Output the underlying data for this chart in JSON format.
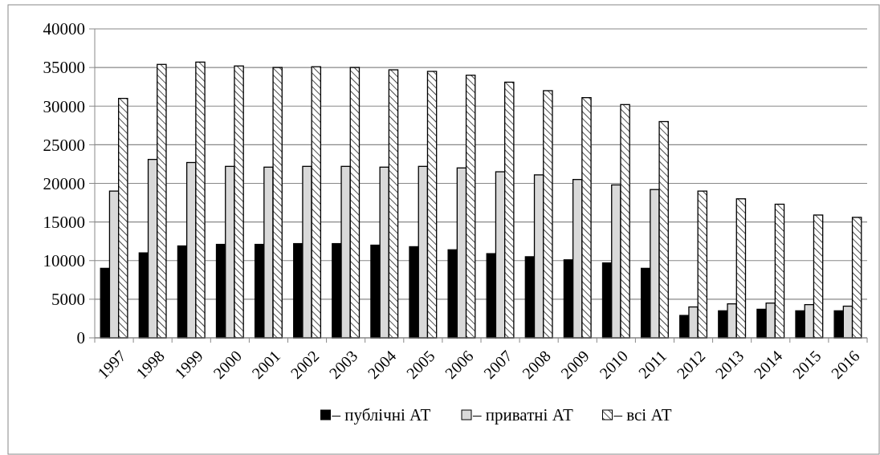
{
  "chart_data": {
    "type": "bar",
    "categories": [
      "1997",
      "1998",
      "1999",
      "2000",
      "2001",
      "2002",
      "2003",
      "2004",
      "2005",
      "2006",
      "2007",
      "2008",
      "2009",
      "2010",
      "2011",
      "2012",
      "2013",
      "2014",
      "2015",
      "2016"
    ],
    "series": [
      {
        "name": "– публічні АТ",
        "color": "#000000",
        "values": [
          9000,
          11000,
          11900,
          12100,
          12100,
          12200,
          12200,
          12000,
          11800,
          11400,
          10900,
          10500,
          10100,
          9700,
          9000,
          2900,
          3500,
          3700,
          3500,
          3500
        ]
      },
      {
        "name": "– приватні АТ",
        "color": "#d9d9d9",
        "values": [
          19000,
          23100,
          22700,
          22200,
          22100,
          22200,
          22200,
          22100,
          22200,
          22000,
          21500,
          21100,
          20500,
          19800,
          19200,
          4000,
          4400,
          4500,
          4300,
          4100
        ]
      },
      {
        "name": "– всі АТ",
        "color": "#000000",
        "values": [
          31000,
          35400,
          35700,
          35200,
          35000,
          35100,
          35000,
          34700,
          34500,
          34000,
          33100,
          32000,
          31100,
          30200,
          28000,
          19000,
          18000,
          17300,
          15900,
          15600
        ]
      }
    ],
    "ylim": [
      0,
      40000
    ],
    "yticks": [
      0,
      5000,
      10000,
      15000,
      20000,
      25000,
      30000,
      35000,
      40000
    ],
    "grid": "y",
    "legend": "bottom"
  }
}
